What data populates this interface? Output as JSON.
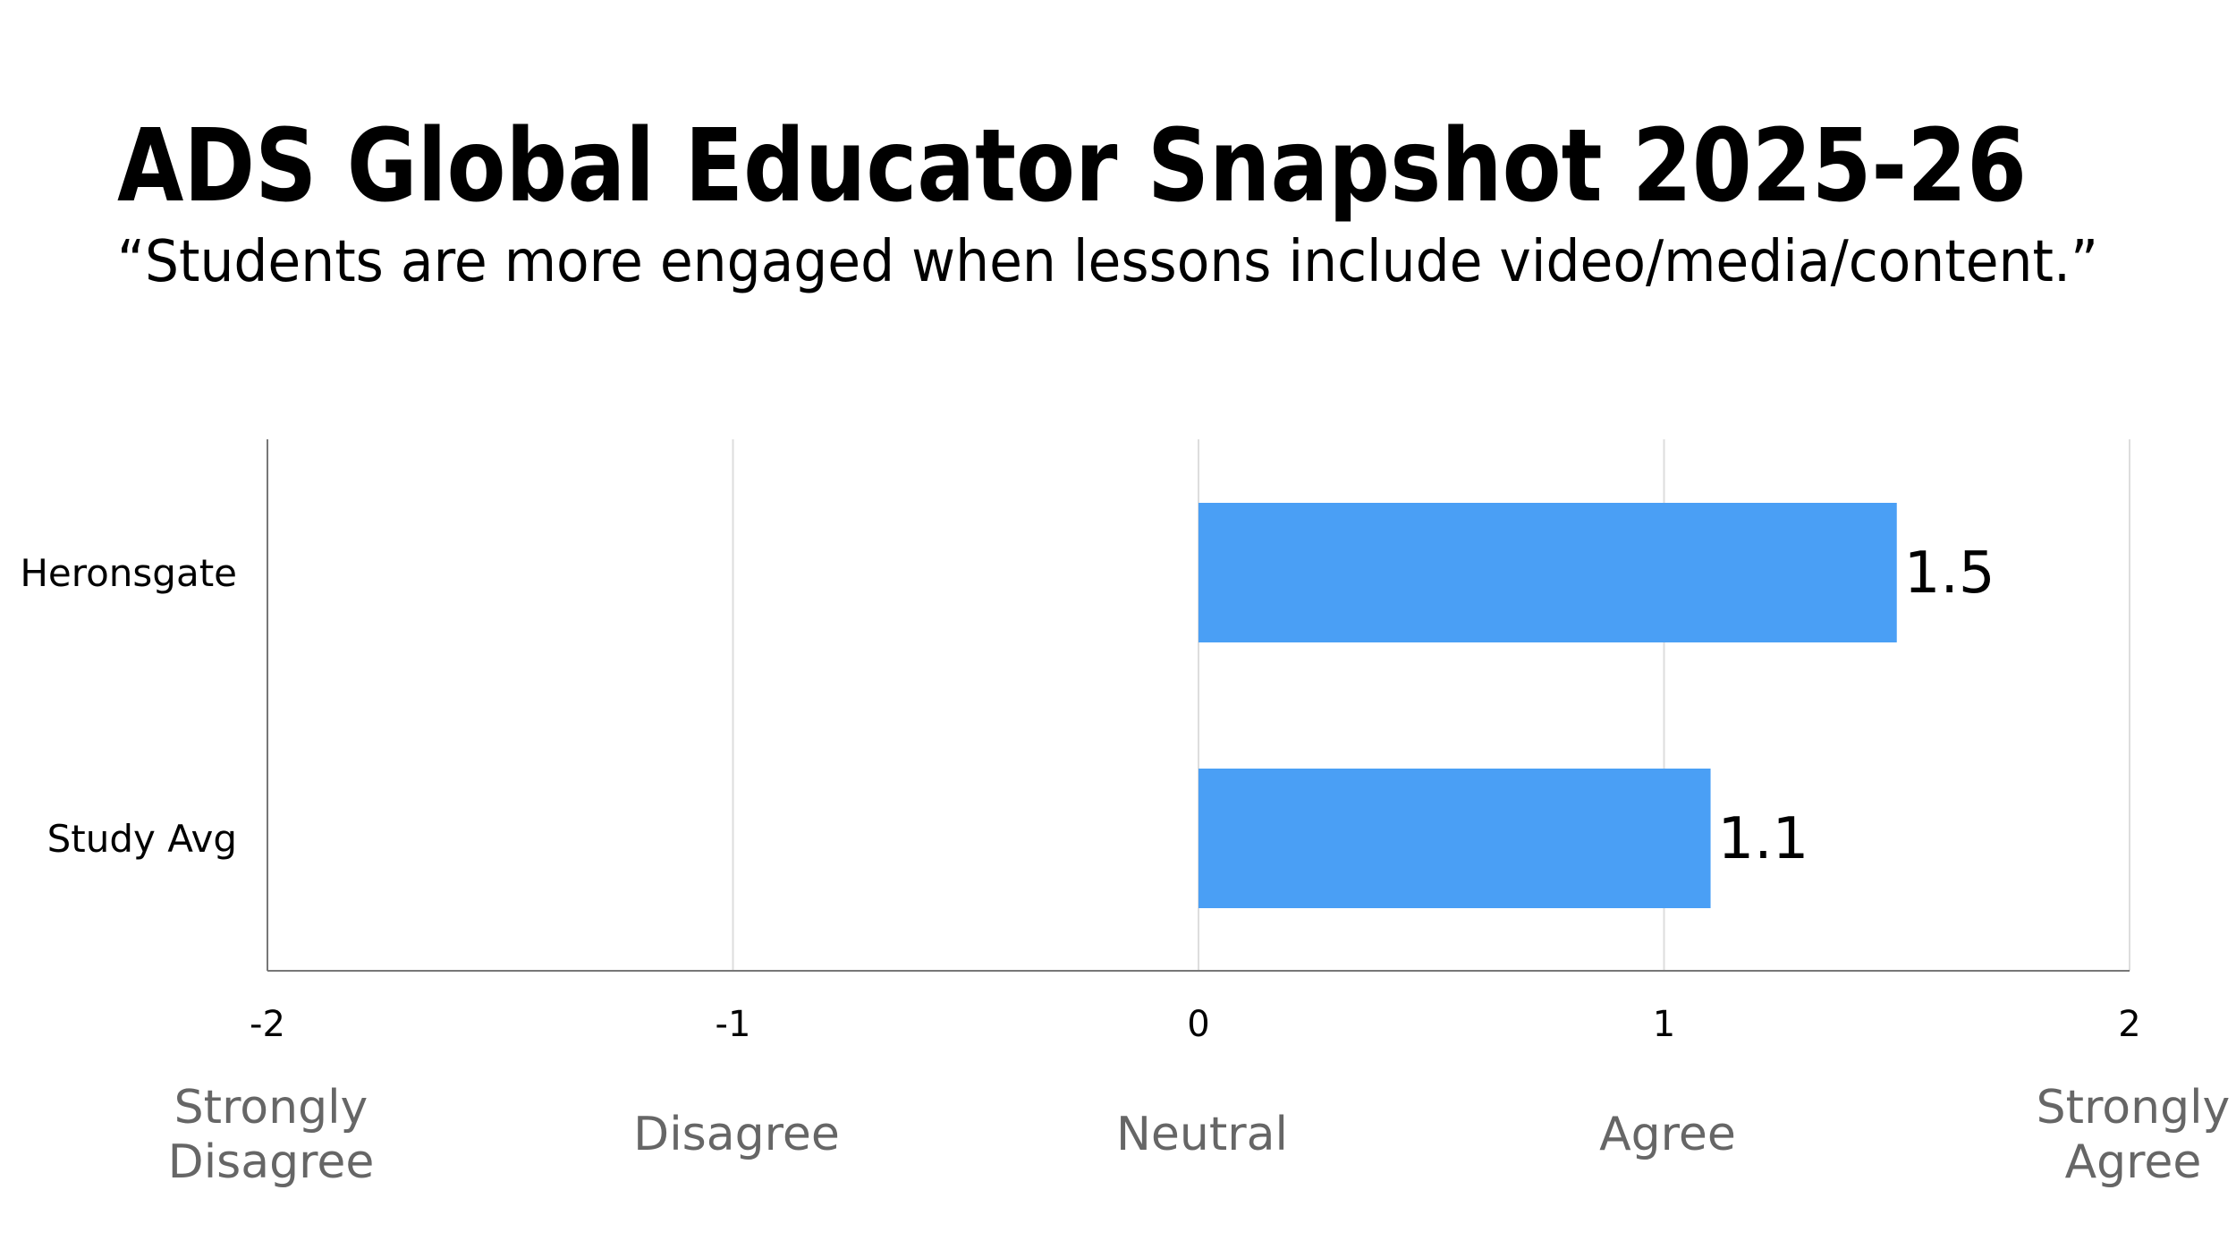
{
  "chart_data": {
    "type": "bar",
    "orientation": "horizontal",
    "title": "ADS Global Educator Snapshot 2025-26",
    "subtitle": "“Students are more engaged when lessons include video/media/content.”",
    "categories": [
      "Heronsgate",
      "Study Avg"
    ],
    "values": [
      1.5,
      1.1
    ],
    "color": "#4a9ff5",
    "xlim": [
      -2,
      2
    ],
    "xticks": [
      -2,
      -1,
      0,
      1,
      2
    ],
    "scale_labels": [
      [
        "Strongly",
        "Disagree"
      ],
      [
        "Disagree"
      ],
      [
        "Neutral"
      ],
      [
        "Agree"
      ],
      [
        "Strongly",
        "Agree"
      ]
    ],
    "grid": true
  }
}
